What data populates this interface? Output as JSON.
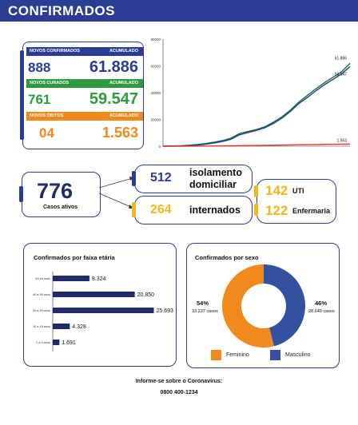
{
  "header": {
    "title": "CONFIRMADOS"
  },
  "stats": {
    "confirmed": {
      "label": "NOVOS CONFIRMADOS",
      "acc_label": "ACUMULADO",
      "new": "888",
      "total": "61.886",
      "color": "#2a3d92"
    },
    "recovered": {
      "label": "NOVOS CURADOS",
      "acc_label": "ACUMULADO",
      "new": "761",
      "total": "59.547",
      "color": "#2e9a3f"
    },
    "deaths": {
      "label": "NOVOS ÓBITOS",
      "acc_label": "ACUMULADO",
      "new": "04",
      "total": "1.563",
      "color": "#f08a1d"
    }
  },
  "chart_data": [
    {
      "type": "line",
      "yticks": [
        "80000",
        "60000",
        "40000",
        "20000",
        "0"
      ],
      "ylim": [
        0,
        80000
      ],
      "grid": false,
      "series": [
        {
          "values": [
            0,
            100,
            300,
            700,
            1200,
            2000,
            3000,
            4200,
            6000,
            9500,
            11000,
            12500,
            14500,
            18000,
            22000,
            27000,
            33000,
            38000,
            43000,
            47500,
            51500,
            55500,
            61886
          ],
          "color": "#1a6e3a",
          "end_label": "61.886"
        },
        {
          "values": [
            0,
            50,
            150,
            400,
            800,
            1500,
            2400,
            3500,
            5200,
            8500,
            10200,
            11800,
            13800,
            17000,
            21000,
            26000,
            32000,
            36500,
            41500,
            46000,
            50000,
            54000,
            59547
          ],
          "color": "#2a3d92",
          "end_label": "59.547"
        },
        {
          "values": [
            0,
            5,
            10,
            30,
            60,
            100,
            150,
            220,
            300,
            400,
            480,
            560,
            640,
            740,
            840,
            940,
            1050,
            1150,
            1250,
            1350,
            1430,
            1500,
            1563
          ],
          "color": "#e0382b",
          "end_label": "1.563"
        }
      ]
    },
    {
      "type": "bar",
      "title": "Confirmados por faixa etária",
      "categories": [
        "60 ou mais",
        "40 a 59 anos",
        "20 a 39 anos",
        "10 a 19 anos",
        "0 a 9 anos"
      ],
      "values": [
        9324,
        20850,
        25693,
        4328,
        1691
      ],
      "value_labels": [
        "9.324",
        "20.850",
        "25.693",
        "4.328",
        "1.691"
      ],
      "color": "#1f2a6b"
    },
    {
      "type": "pie",
      "title": "Confirmados por sexo",
      "slices": [
        {
          "name": "Feminino",
          "percent": 54,
          "pct_label": "54%",
          "cases_label": "33.237 casos",
          "color": "#f08a1d"
        },
        {
          "name": "Masculino",
          "percent": 46,
          "pct_label": "46%",
          "cases_label": "28.649 casos",
          "color": "#34509f"
        }
      ]
    }
  ],
  "active": {
    "number": "776",
    "label": "Casos ativos"
  },
  "isolation": {
    "number": "512",
    "text": "isolamento domiciliar"
  },
  "hospital": {
    "number": "264",
    "text": "internados"
  },
  "uti": {
    "number": "142",
    "text": "UTI"
  },
  "enfermaria": {
    "number": "122",
    "text": "Enfermaria"
  },
  "footer": {
    "line1": "Informe-se sobre o Coronavírus:",
    "line2": "0800 400-1234"
  }
}
